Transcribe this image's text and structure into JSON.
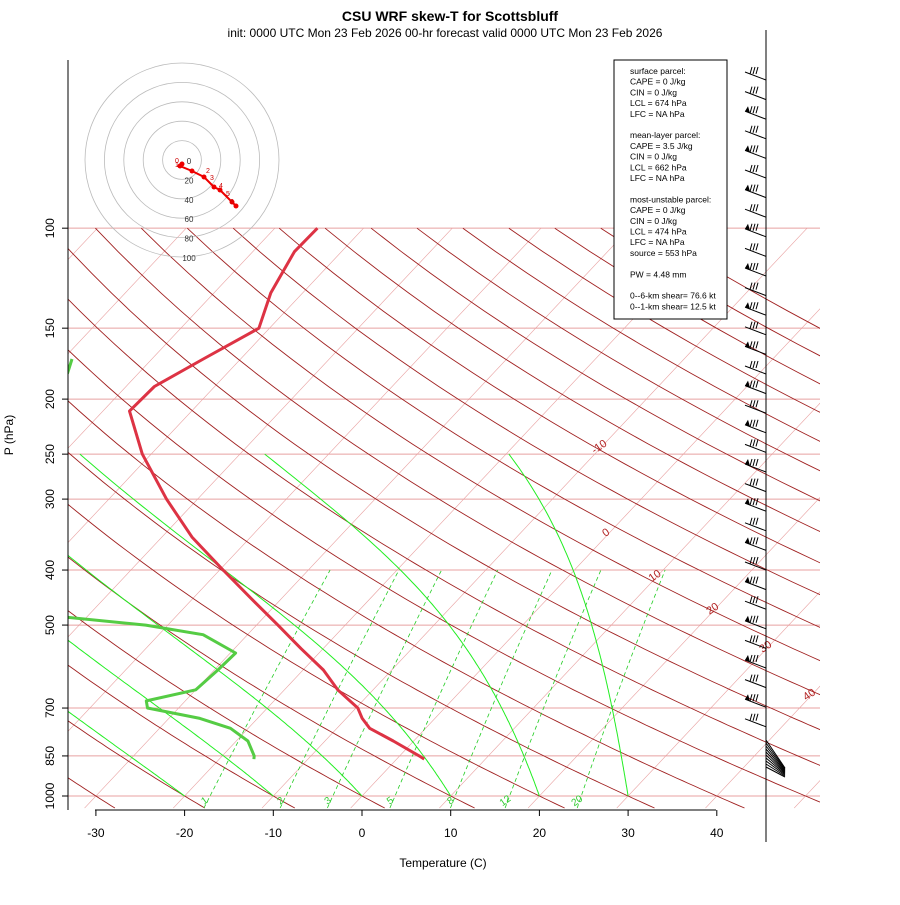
{
  "title": "CSU WRF skew-T for Scottsbluff",
  "subtitle": "init: 0000 UTC Mon 23 Feb 2026     00-hr forecast valid 0000 UTC Mon 23 Feb 2026",
  "colors": {
    "temperature": "#dd3344",
    "dewpoint": "#55cc44",
    "isotherm": "#aa2222",
    "isobar_grid": "#e8a0a0",
    "dry_adiabat": "#a02020",
    "moist_adiabat": "#22ee22",
    "mixing_ratio": "#22cc22",
    "hodograph": "#ee0000"
  },
  "info_box": {
    "lines": [
      "surface parcel:",
      "CAPE = 0 J/kg",
      "CIN = 0 J/kg",
      "LCL = 674 hPa",
      "LFC = NA hPa",
      "",
      "mean-layer parcel:",
      "CAPE = 3.5 J/kg",
      "CIN = 0 J/kg",
      "LCL = 662 hPa",
      "LFC = NA hPa",
      "",
      "most-unstable parcel:",
      "CAPE = 0 J/kg",
      "CIN = 0 J/kg",
      "LCL = 474 hPa",
      "LFC = NA hPa",
      "source = 553 hPa",
      "",
      "PW =  4.48 mm",
      "",
      "0--6-km shear= 76.6 kt",
      "0--1-km shear= 12.5 kt"
    ]
  },
  "hodograph": {
    "ring_labels": [
      "0",
      "20",
      "40",
      "60",
      "80",
      "100"
    ],
    "point_labels": [
      "0",
      "1",
      "2",
      "3",
      "4",
      "5",
      "6"
    ]
  },
  "chart_data": {
    "type": "line",
    "title": "CSU WRF skew-T for Scottsbluff",
    "subtitle": "init: 0000 UTC Mon 23 Feb 2026     00-hr forecast valid 0000 UTC Mon 23 Feb 2026",
    "xlabel": "Temperature (C)",
    "ylabel": "P (hPa)",
    "xlim": [
      -33,
      46
    ],
    "ylim": [
      1050,
      100
    ],
    "y_scale": "log",
    "skew": "skew-T",
    "x_ticks": [
      -30,
      -20,
      -10,
      0,
      10,
      20,
      30,
      40
    ],
    "y_ticks": [
      100,
      150,
      200,
      250,
      300,
      400,
      500,
      700,
      850,
      1000
    ],
    "isotherm_labels": [
      "-10",
      "0",
      "10",
      "20",
      "30",
      "40",
      "50"
    ],
    "mixing_ratio_labels": [
      "1",
      "2",
      "3",
      "5",
      "8",
      "12",
      "20"
    ],
    "series": [
      {
        "name": "temperature",
        "points": [
          {
            "p": 861,
            "t": 3.1
          },
          {
            "p": 850,
            "t": 2.2
          },
          {
            "p": 800,
            "t": -2.3
          },
          {
            "p": 760,
            "t": -6.3
          },
          {
            "p": 730,
            "t": -8.2
          },
          {
            "p": 700,
            "t": -9.8
          },
          {
            "p": 650,
            "t": -14.0
          },
          {
            "p": 600,
            "t": -17.7
          },
          {
            "p": 550,
            "t": -22.5
          },
          {
            "p": 500,
            "t": -27.6
          },
          {
            "p": 450,
            "t": -33.3
          },
          {
            "p": 400,
            "t": -39.6
          },
          {
            "p": 350,
            "t": -46.6
          },
          {
            "p": 300,
            "t": -53.5
          },
          {
            "p": 250,
            "t": -61.0
          },
          {
            "p": 210,
            "t": -67.0
          },
          {
            "p": 190,
            "t": -66.8
          },
          {
            "p": 170,
            "t": -64.2
          },
          {
            "p": 150,
            "t": -61.2
          },
          {
            "p": 130,
            "t": -63.6
          },
          {
            "p": 110,
            "t": -65.3
          },
          {
            "p": 100,
            "t": -65.2
          }
        ]
      },
      {
        "name": "dewpoint",
        "points": [
          {
            "p": 861,
            "t": -16.1
          },
          {
            "p": 850,
            "t": -16.4
          },
          {
            "p": 800,
            "t": -18.7
          },
          {
            "p": 760,
            "t": -22.0
          },
          {
            "p": 730,
            "t": -26.5
          },
          {
            "p": 700,
            "t": -33.5
          },
          {
            "p": 680,
            "t": -34.4
          },
          {
            "p": 650,
            "t": -30.0
          },
          {
            "p": 600,
            "t": -29.6
          },
          {
            "p": 560,
            "t": -29.4
          },
          {
            "p": 520,
            "t": -35.0
          },
          {
            "p": 500,
            "t": -42.5
          },
          {
            "p": 480,
            "t": -55.0
          },
          {
            "p": 440,
            "t": -66.0
          },
          {
            "p": 420,
            "t": -64.5
          },
          {
            "p": 400,
            "t": -63.0
          },
          {
            "p": 380,
            "t": -64.0
          },
          {
            "p": 350,
            "t": -69.4
          },
          {
            "p": 300,
            "t": -78.4
          },
          {
            "p": 270,
            "t": -83.5
          },
          {
            "p": 250,
            "t": -83.5
          },
          {
            "p": 240,
            "t": -83.0
          },
          {
            "p": 210,
            "t": -80.3
          },
          {
            "p": 200,
            "t": -79.0
          },
          {
            "p": 180,
            "t": -78.0
          },
          {
            "p": 170,
            "t": -79.0
          }
        ]
      }
    ]
  }
}
